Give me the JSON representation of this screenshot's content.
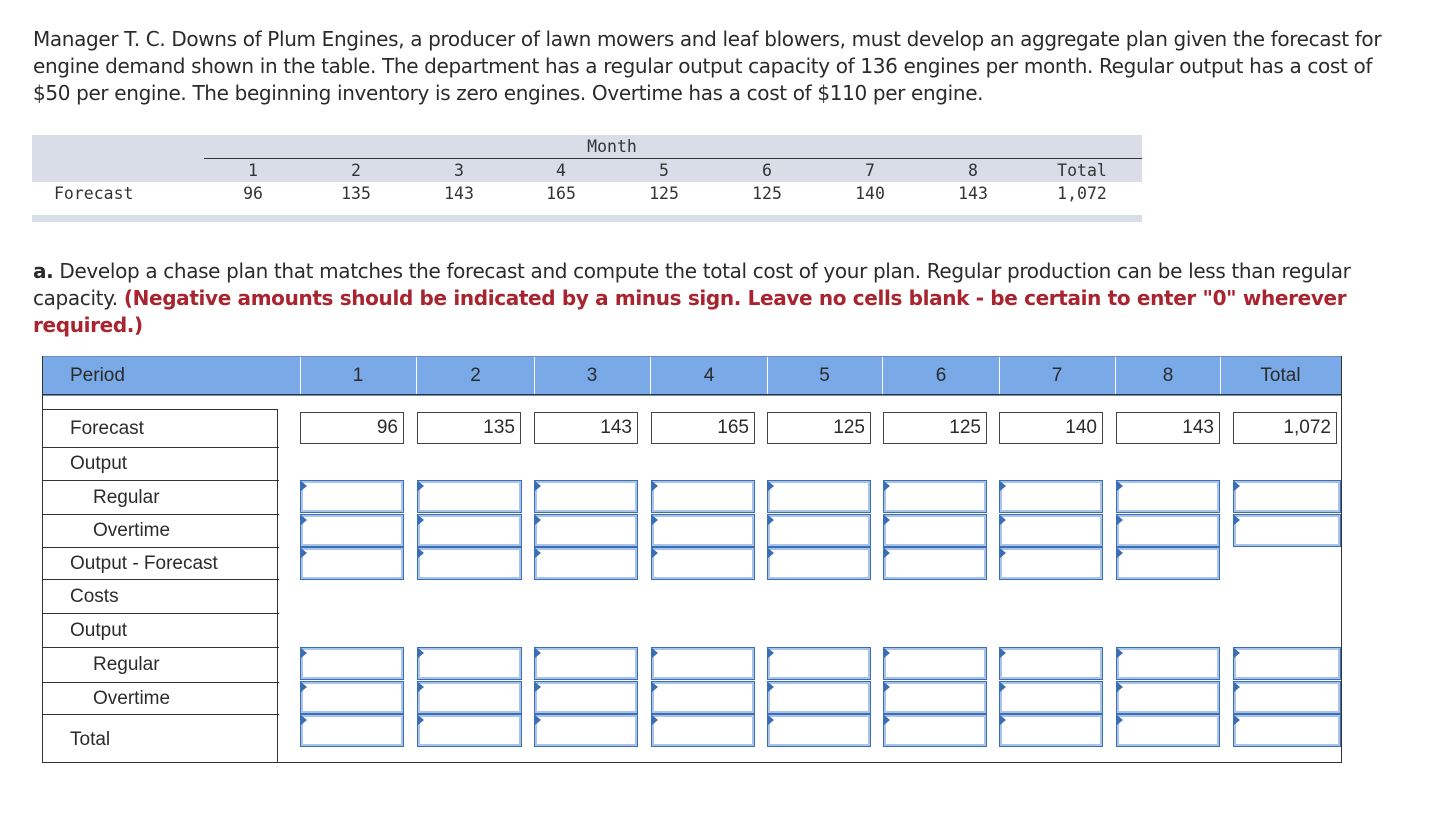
{
  "problem_text": "Manager T. C. Downs of Plum Engines, a producer of lawn mowers and leaf blowers, must develop an aggregate plan given the forecast for engine demand shown in the table. The department has a regular output capacity of 136 engines per month. Regular output has a cost of $50 per engine. The beginning inventory is zero engines. Overtime has a cost of $110 per engine.",
  "forecast_table": {
    "month_header": "Month",
    "row_label": "Forecast",
    "columns": [
      "1",
      "2",
      "3",
      "4",
      "5",
      "6",
      "7",
      "8",
      "Total"
    ],
    "values": [
      "96",
      "135",
      "143",
      "165",
      "125",
      "125",
      "140",
      "143",
      "1,072"
    ]
  },
  "question": {
    "part": "a.",
    "text": "Develop a chase plan that matches the forecast and compute the total cost of your plan. Regular production can be less than regular capacity.",
    "instruction": "(Negative amounts should be indicated by a minus sign. Leave no cells blank - be certain to enter \"0\" wherever required.)"
  },
  "grid": {
    "header": [
      "Period",
      "1",
      "2",
      "3",
      "4",
      "5",
      "6",
      "7",
      "8",
      "Total"
    ],
    "row_labels": {
      "forecast": "Forecast",
      "output": "Output",
      "regular": "Regular",
      "overtime": "Overtime",
      "output_minus_forecast": "Output - Forecast",
      "costs": "Costs",
      "cost_output": "Output",
      "cost_regular": "Regular",
      "cost_overtime": "Overtime",
      "total": "Total"
    },
    "forecast_values": [
      "96",
      "135",
      "143",
      "165",
      "125",
      "125",
      "140",
      "143",
      "1,072"
    ]
  }
}
